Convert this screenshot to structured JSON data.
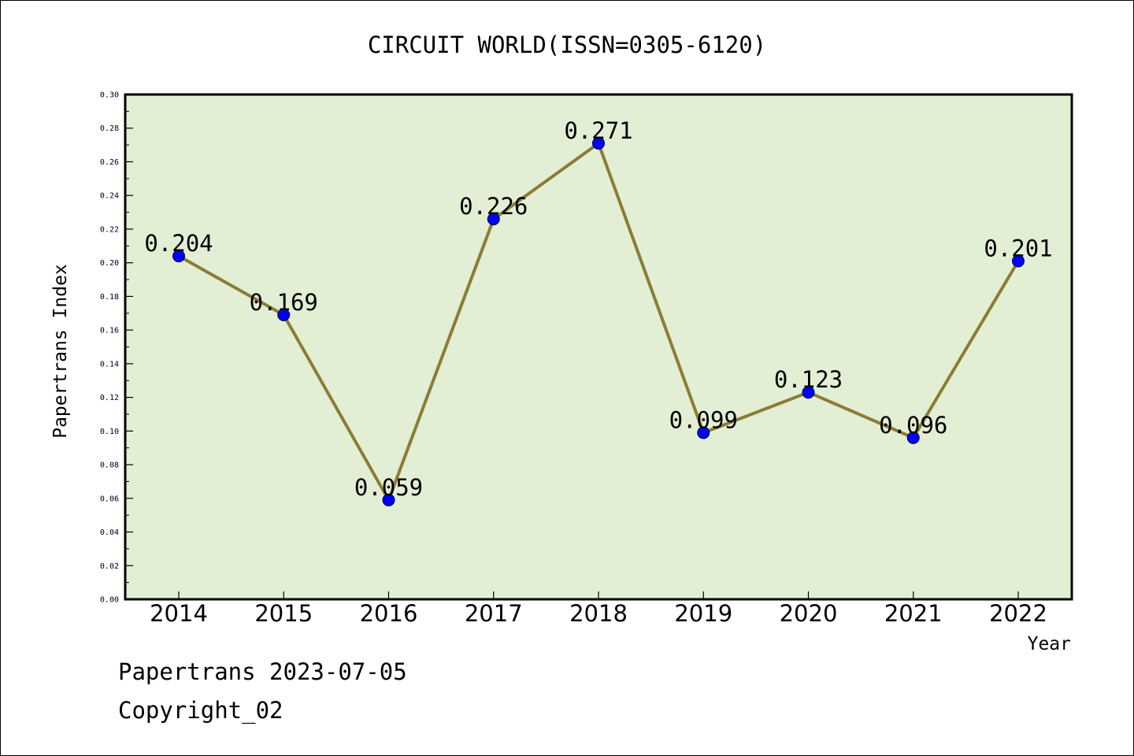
{
  "footer": {
    "line1": "Papertrans 2023-07-05",
    "line2": "Copyright_02"
  },
  "colors": {
    "plot_background": "#e2efd5",
    "line": "#8b7d35",
    "marker": "#0000ff",
    "axis": "#000000"
  },
  "chart_data": {
    "type": "line",
    "title": "CIRCUIT WORLD(ISSN=0305-6120)",
    "xlabel": "Year",
    "ylabel": "Papertrans Index",
    "categories": [
      "2014",
      "2015",
      "2016",
      "2017",
      "2018",
      "2019",
      "2020",
      "2021",
      "2022"
    ],
    "series": [
      {
        "values": [
          0.204,
          0.169,
          0.059,
          0.226,
          0.271,
          0.099,
          0.123,
          0.096,
          0.201
        ],
        "labels": [
          "0.204",
          "0.169",
          "0.059",
          "0.226",
          "0.271",
          "0.099",
          "0.123",
          "0.096",
          "0.201"
        ]
      }
    ],
    "ylim": [
      0,
      0.3
    ],
    "yticks": [
      "0.00",
      "0.02",
      "0.04",
      "0.06",
      "0.08",
      "0.10",
      "0.12",
      "0.14",
      "0.16",
      "0.18",
      "0.20",
      "0.22",
      "0.24",
      "0.26",
      "0.28",
      "0.30"
    ],
    "grid": false,
    "legend": "none"
  }
}
